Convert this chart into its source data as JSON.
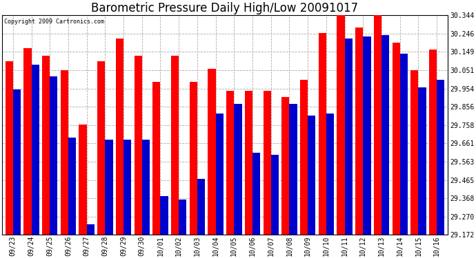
{
  "title": "Barometric Pressure Daily High/Low 20091017",
  "copyright": "Copyright 2009 Cartronics.com",
  "dates": [
    "09/23",
    "09/24",
    "09/25",
    "09/26",
    "09/27",
    "09/28",
    "09/29",
    "09/30",
    "10/01",
    "10/02",
    "10/03",
    "10/04",
    "10/05",
    "10/06",
    "10/07",
    "10/08",
    "10/09",
    "10/10",
    "10/11",
    "10/12",
    "10/13",
    "10/14",
    "10/15",
    "10/16"
  ],
  "highs": [
    30.1,
    30.17,
    30.13,
    30.05,
    29.76,
    30.1,
    30.22,
    30.13,
    29.99,
    30.13,
    29.99,
    30.06,
    29.94,
    29.94,
    29.94,
    29.91,
    30.0,
    30.25,
    30.35,
    30.28,
    30.35,
    30.2,
    30.05,
    30.16
  ],
  "lows": [
    29.95,
    30.08,
    30.02,
    29.69,
    29.23,
    29.68,
    29.68,
    29.68,
    29.38,
    29.36,
    29.47,
    29.82,
    29.87,
    29.61,
    29.6,
    29.87,
    29.81,
    29.82,
    30.22,
    30.23,
    30.24,
    30.14,
    29.96,
    30.0
  ],
  "high_color": "#ff0000",
  "low_color": "#0000cc",
  "background_color": "#ffffff",
  "grid_color": "#aaaaaa",
  "ymin": 29.172,
  "ymax": 30.344,
  "yticks": [
    29.172,
    29.27,
    29.368,
    29.465,
    29.563,
    29.661,
    29.758,
    29.856,
    29.954,
    30.051,
    30.149,
    30.246,
    30.344
  ],
  "title_fontsize": 12,
  "tick_fontsize": 7,
  "copyright_fontsize": 6
}
